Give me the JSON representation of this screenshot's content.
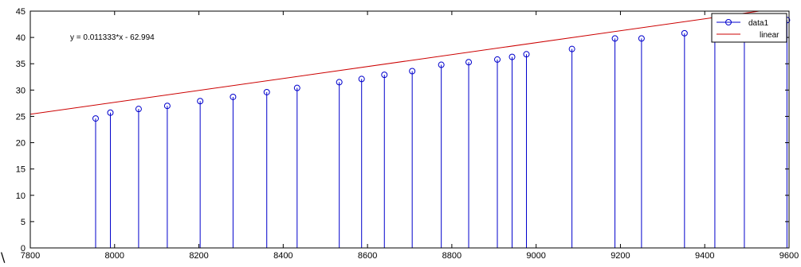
{
  "chart_data": {
    "type": "stem",
    "xlim": [
      7800,
      9600
    ],
    "ylim": [
      0,
      45
    ],
    "x_ticks": [
      7800,
      8000,
      8200,
      8400,
      8600,
      8800,
      9000,
      9200,
      9400,
      9600
    ],
    "y_ticks": [
      0,
      5,
      10,
      15,
      20,
      25,
      30,
      35,
      40,
      45
    ],
    "grid": false,
    "legend_position": "top-right",
    "annotation": "y = 0.011333*x - 62.994",
    "series": [
      {
        "name": "data1",
        "style": "stem-circle",
        "color": "#0000cc",
        "x": [
          7955,
          7990,
          8057,
          8125,
          8203,
          8281,
          8361,
          8433,
          8533,
          8586,
          8640,
          8706,
          8775,
          8840,
          8908,
          8943,
          8977,
          9085,
          9187,
          9250,
          9352,
          9424,
          9494,
          9595
        ],
        "y": [
          24.6,
          25.7,
          26.4,
          27.0,
          27.9,
          28.7,
          29.6,
          30.4,
          31.5,
          32.1,
          32.9,
          33.6,
          34.8,
          35.3,
          35.8,
          36.3,
          36.8,
          37.8,
          39.8,
          39.8,
          40.8,
          41.2,
          42.1,
          43.3
        ]
      },
      {
        "name": "linear",
        "style": "line",
        "color": "#cc0000",
        "slope": 0.011333,
        "intercept": -62.994
      }
    ]
  },
  "stray_text": "\\"
}
